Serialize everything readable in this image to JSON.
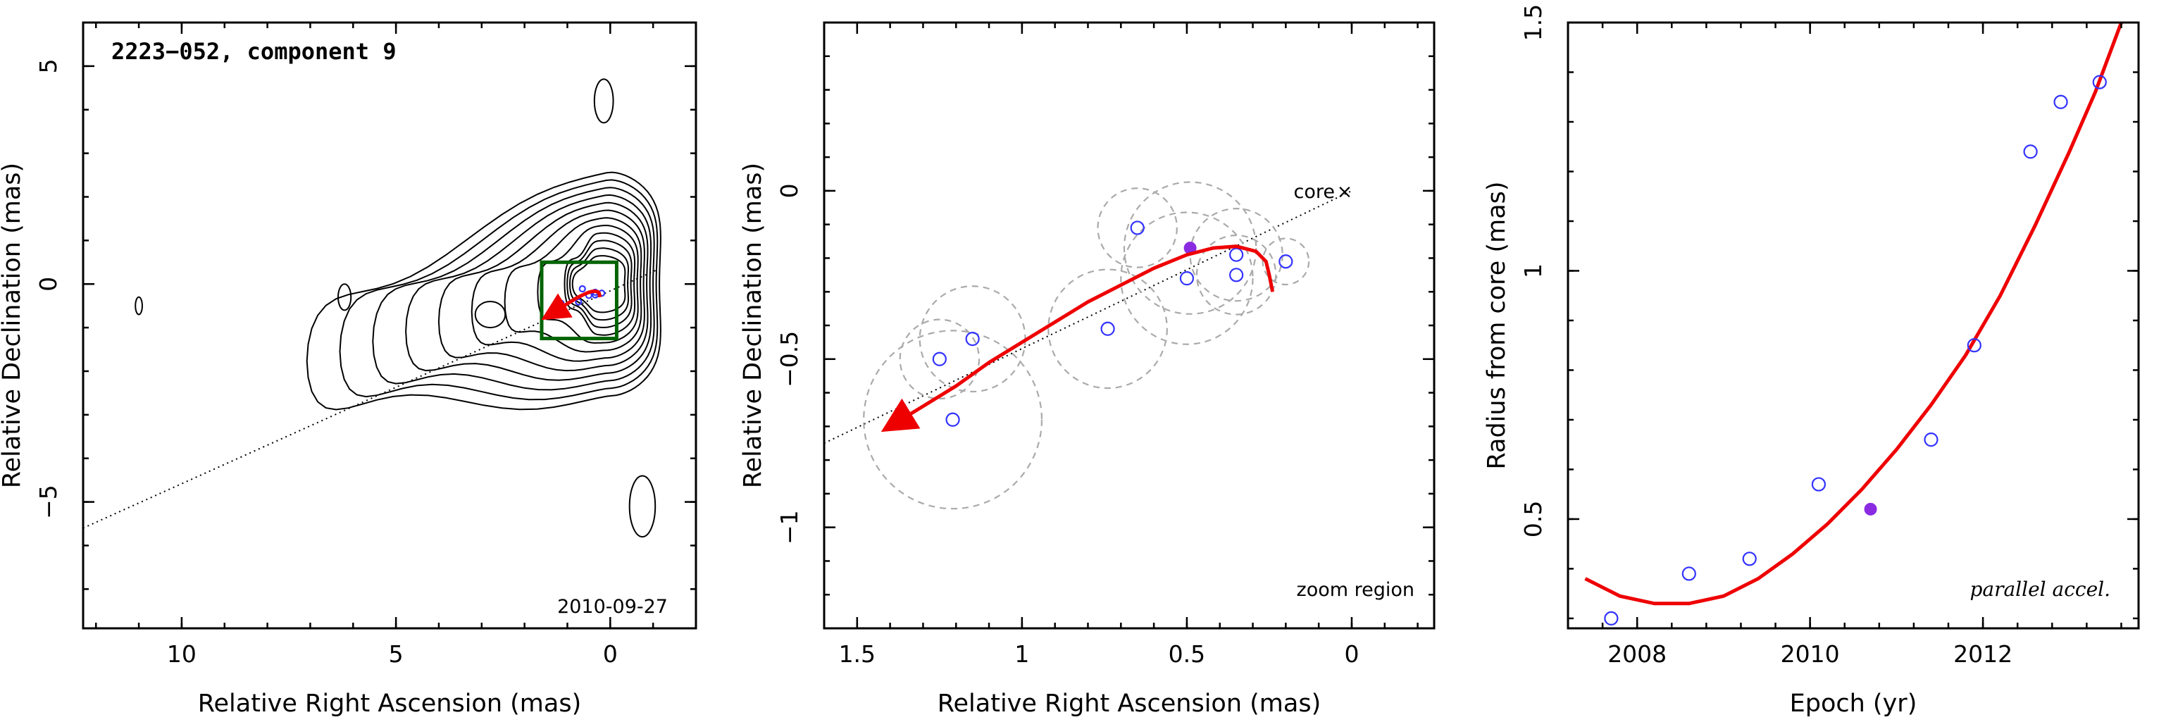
{
  "figure": {
    "colors": {
      "track": "#ee0000",
      "epoch_open": "#3333ff",
      "epoch_filled": "#8a2be2",
      "zoom_box": "#006400",
      "size_rings": "#aaaaaa"
    }
  },
  "chart_data": [
    {
      "type": "contour",
      "title": "2223−052, component 9",
      "date_label": "2010-09-27",
      "xlabel": "Relative Right Ascension (mas)",
      "ylabel": "Relative Declination (mas)",
      "xlim": [
        12.3,
        -2.0
      ],
      "ylim": [
        -7.9,
        6.0
      ],
      "x_inverted": true,
      "xticks": [
        10,
        5,
        0
      ],
      "yticks": [
        5,
        0,
        -5
      ],
      "xtick_labels": [
        "10",
        "5",
        "0"
      ],
      "ytick_labels": [
        "5",
        "0",
        "−5"
      ],
      "contour_levels": 12,
      "ridge_line": {
        "x": [
          12.3,
          -1.1
        ],
        "y": [
          -5.6,
          0.33
        ]
      },
      "zoom_box": {
        "x": [
          1.6,
          -0.15
        ],
        "y": [
          -1.25,
          0.5
        ]
      },
      "track_endpoints": {
        "x": [
          1.4,
          0.23
        ],
        "y": [
          -0.7,
          -0.3
        ]
      }
    },
    {
      "type": "scatter",
      "xlabel": "Relative Right Ascension (mas)",
      "ylabel": "Relative Declination (mas)",
      "xlim": [
        1.6,
        -0.25
      ],
      "ylim": [
        -1.3,
        0.5
      ],
      "x_inverted": true,
      "xticks": [
        1.5,
        1,
        0.5,
        0
      ],
      "yticks": [
        0,
        -0.5,
        -1
      ],
      "xtick_labels": [
        "1.5",
        "1",
        "0.5",
        "0"
      ],
      "ytick_labels": [
        "0",
        "−0.5",
        "−1"
      ],
      "annotation_core": "core",
      "core_marker": "×",
      "core_position": {
        "x": 0,
        "y": 0
      },
      "annotation_corner": "zoom region",
      "ridge_line": {
        "x": [
          1.6,
          0
        ],
        "y": [
          -0.75,
          0
        ]
      },
      "epochs": {
        "x": [
          1.21,
          1.25,
          1.15,
          0.74,
          0.65,
          0.5,
          0.35,
          0.35,
          0.2
        ],
        "y": [
          -0.68,
          -0.5,
          -0.44,
          -0.41,
          -0.11,
          -0.26,
          -0.19,
          -0.25,
          -0.21
        ],
        "size_radius": [
          0.27,
          0.12,
          0.16,
          0.18,
          0.12,
          0.2,
          0.14,
          0.12,
          0.07
        ]
      },
      "reference_epoch": {
        "x": 0.49,
        "y": -0.17
      },
      "track": {
        "x": [
          1.4,
          1.3,
          1.2,
          1.1,
          1.0,
          0.9,
          0.8,
          0.7,
          0.6,
          0.5,
          0.42,
          0.35,
          0.29,
          0.26,
          0.25,
          0.24
        ],
        "y": [
          -0.7,
          -0.64,
          -0.58,
          -0.51,
          -0.45,
          -0.39,
          -0.33,
          -0.28,
          -0.23,
          -0.19,
          -0.17,
          -0.165,
          -0.18,
          -0.21,
          -0.25,
          -0.3
        ]
      }
    },
    {
      "type": "scatter",
      "xlabel": "Epoch (yr)",
      "ylabel": "Radius from core (mas)",
      "xlim": [
        2007.2,
        2013.8
      ],
      "ylim": [
        0.28,
        1.5
      ],
      "xticks": [
        2008,
        2010,
        2012
      ],
      "yticks": [
        0.5,
        1,
        1.5
      ],
      "xtick_labels": [
        "2008",
        "2010",
        "2012"
      ],
      "ytick_labels": [
        "0.5",
        "1",
        "1.5"
      ],
      "annotation_corner": "parallel accel.",
      "series": [
        {
          "x": [
            2007.7,
            2008.6,
            2009.3,
            2010.1,
            2011.4,
            2011.9,
            2012.55,
            2012.9,
            2013.35
          ],
          "y": [
            0.3,
            0.39,
            0.42,
            0.57,
            0.66,
            0.85,
            1.24,
            1.34,
            1.38
          ]
        }
      ],
      "reference_point": {
        "x": 2010.7,
        "y": 0.52
      },
      "fit": {
        "x": [
          2007.4,
          2007.8,
          2008.2,
          2008.6,
          2009.0,
          2009.4,
          2009.8,
          2010.2,
          2010.6,
          2011.0,
          2011.4,
          2011.8,
          2012.2,
          2012.6,
          2013.0,
          2013.3,
          2013.6
        ],
        "y": [
          0.38,
          0.345,
          0.33,
          0.33,
          0.345,
          0.38,
          0.43,
          0.49,
          0.56,
          0.64,
          0.73,
          0.83,
          0.95,
          1.09,
          1.24,
          1.36,
          1.5
        ]
      }
    }
  ]
}
